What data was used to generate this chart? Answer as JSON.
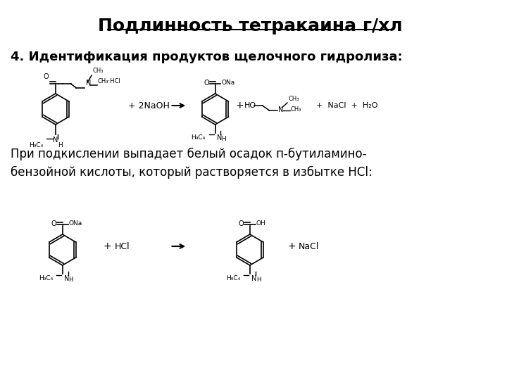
{
  "title_line1": "Подлинность",
  "title_line2": "тетракаина г/хл",
  "subtitle": "4. Идентификация продуктов щелочного гидролиза:",
  "text_body": "При подкислении выпадает белый осадок п-бутиламино-\nбензойной кислоты, который растворяется в избытке HCl:",
  "bg_color": "#ffffff",
  "text_color": "#000000",
  "title_fontsize": 18,
  "subtitle_fontsize": 13,
  "body_fontsize": 12,
  "fig_width": 7.2,
  "fig_height": 5.4,
  "dpi": 100
}
